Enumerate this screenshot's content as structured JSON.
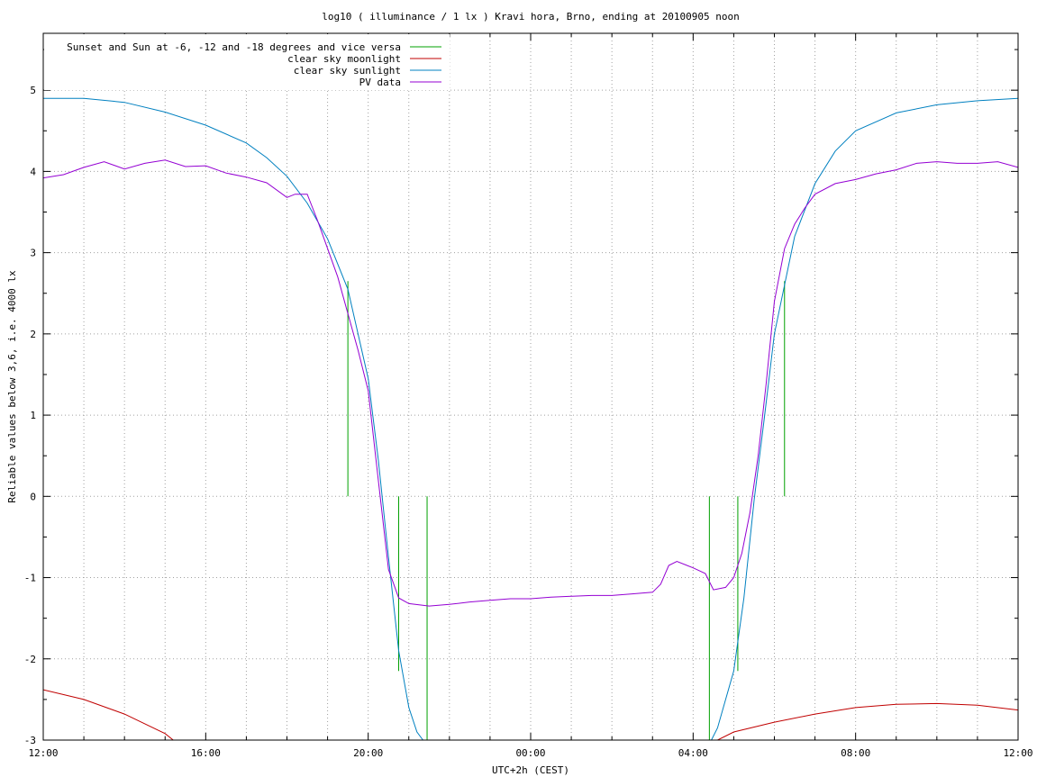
{
  "chart_data": {
    "type": "line",
    "title": "log10 ( illuminance / 1 lx ) Kravi hora, Brno, ending at 20100905 noon",
    "xlabel": "UTC+2h (CEST)",
    "ylabel": "Reliable values below 3,6, i.e. 4000 lx",
    "xlim": [
      12,
      36
    ],
    "ylim": [
      -3,
      5.7
    ],
    "grid": true,
    "legend_position": "top-left",
    "x_ticks": [
      {
        "value": 12,
        "label": "12:00"
      },
      {
        "value": 16,
        "label": "16:00"
      },
      {
        "value": 20,
        "label": "20:00"
      },
      {
        "value": 24,
        "label": "00:00"
      },
      {
        "value": 28,
        "label": "04:00"
      },
      {
        "value": 32,
        "label": "08:00"
      },
      {
        "value": 36,
        "label": "12:00"
      }
    ],
    "y_ticks": [
      {
        "value": -3,
        "label": "-3"
      },
      {
        "value": -2,
        "label": "-2"
      },
      {
        "value": -1,
        "label": "-1"
      },
      {
        "value": 0,
        "label": "0"
      },
      {
        "value": 1,
        "label": "1"
      },
      {
        "value": 2,
        "label": "2"
      },
      {
        "value": 3,
        "label": "3"
      },
      {
        "value": 4,
        "label": "4"
      },
      {
        "value": 5,
        "label": "5"
      }
    ],
    "series": [
      {
        "name": "Sunset and Sun at -6, -12 and -18 degrees and vice versa",
        "color": "#00a000",
        "style": "impulse",
        "x": [
          19.5,
          20.1,
          20.75,
          21.45,
          28.4,
          29.1,
          29.65,
          30.25
        ],
        "y": [
          2.65,
          0.0,
          -2.15,
          -3.0,
          -3.0,
          -2.15,
          0.0,
          2.65
        ]
      },
      {
        "name": "clear sky moonlight",
        "color": "#c00000",
        "x": [
          12.0,
          13.0,
          14.0,
          15.0,
          15.2,
          28.6,
          29.0,
          30.0,
          31.0,
          32.0,
          33.0,
          34.0,
          35.0,
          36.0
        ],
        "y": [
          -2.38,
          -2.5,
          -2.68,
          -2.92,
          -3.0,
          -3.0,
          -2.9,
          -2.78,
          -2.68,
          -2.6,
          -2.56,
          -2.55,
          -2.57,
          -2.63
        ]
      },
      {
        "name": "clear sky sunlight",
        "color": "#0080c0",
        "x": [
          12.0,
          13.0,
          14.0,
          15.0,
          16.0,
          17.0,
          17.5,
          18.0,
          18.5,
          19.0,
          19.5,
          20.0,
          20.25,
          20.5,
          20.75,
          21.0,
          21.2,
          21.35,
          28.45,
          28.6,
          28.8,
          29.0,
          29.25,
          29.5,
          29.75,
          30.0,
          30.5,
          31.0,
          31.5,
          32.0,
          33.0,
          34.0,
          35.0,
          36.0
        ],
        "y": [
          4.9,
          4.9,
          4.85,
          4.73,
          4.57,
          4.35,
          4.17,
          3.94,
          3.61,
          3.17,
          2.55,
          1.45,
          0.45,
          -0.75,
          -1.9,
          -2.6,
          -2.9,
          -3.0,
          -3.0,
          -2.85,
          -2.5,
          -2.15,
          -1.25,
          -0.05,
          0.95,
          2.0,
          3.2,
          3.85,
          4.25,
          4.5,
          4.72,
          4.82,
          4.87,
          4.9
        ]
      },
      {
        "name": "PV data",
        "color": "#9400d3",
        "x": [
          12.0,
          12.5,
          13.0,
          13.5,
          14.0,
          14.5,
          15.0,
          15.5,
          16.0,
          16.5,
          17.0,
          17.5,
          18.0,
          18.2,
          18.5,
          18.75,
          19.0,
          19.25,
          19.5,
          19.75,
          20.0,
          20.25,
          20.5,
          20.75,
          21.0,
          21.5,
          22.0,
          22.5,
          23.0,
          23.5,
          24.0,
          24.5,
          25.0,
          25.5,
          26.0,
          26.5,
          27.0,
          27.2,
          27.4,
          27.6,
          28.0,
          28.3,
          28.5,
          28.8,
          29.0,
          29.2,
          29.4,
          29.6,
          29.8,
          30.0,
          30.25,
          30.5,
          30.75,
          31.0,
          31.5,
          32.0,
          32.5,
          33.0,
          33.5,
          34.0,
          34.5,
          35.0,
          35.5,
          36.0
        ],
        "y": [
          3.92,
          3.96,
          4.05,
          4.12,
          4.03,
          4.1,
          4.14,
          4.06,
          4.07,
          3.98,
          3.93,
          3.86,
          3.68,
          3.72,
          3.72,
          3.4,
          3.05,
          2.7,
          2.25,
          1.8,
          1.3,
          0.2,
          -0.9,
          -1.25,
          -1.32,
          -1.35,
          -1.33,
          -1.3,
          -1.28,
          -1.26,
          -1.26,
          -1.24,
          -1.23,
          -1.22,
          -1.22,
          -1.2,
          -1.18,
          -1.08,
          -0.85,
          -0.8,
          -0.88,
          -0.95,
          -1.15,
          -1.12,
          -1.0,
          -0.7,
          -0.2,
          0.5,
          1.4,
          2.4,
          3.05,
          3.35,
          3.55,
          3.72,
          3.85,
          3.9,
          3.97,
          4.02,
          4.1,
          4.12,
          4.1,
          4.1,
          4.12,
          4.05
        ]
      }
    ]
  }
}
